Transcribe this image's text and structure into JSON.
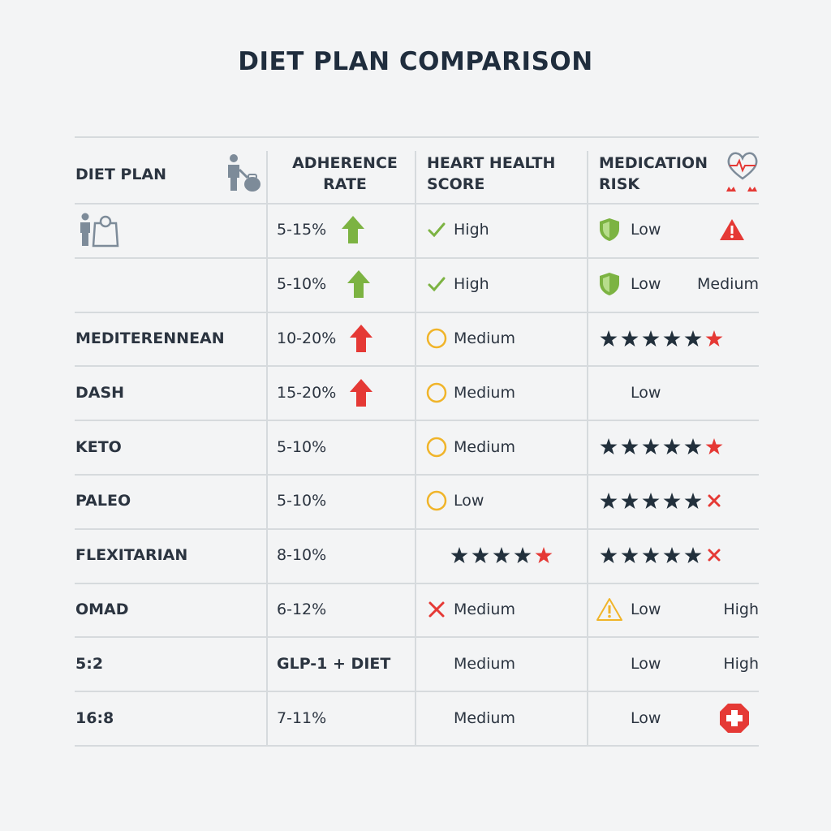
{
  "title": "DIET PLAN COMPARISON",
  "table": {
    "headers": [
      "DIET PLAN",
      "ADHERENCE RATE",
      "HEART HEALTH SCORE",
      "MEDICATION RISK"
    ],
    "rows": [
      {
        "adherence": "5-15%",
        "heart_health": "High",
        "medication_risk": "Low"
      },
      {
        "adherence": "5-10%",
        "heart_health": "High",
        "medication_risk": "Low",
        "medication_note": "Medium"
      },
      {
        "plan": "MEDITERENNEAN",
        "adherence": "10-20%",
        "heart_health": "Medium"
      },
      {
        "plan": "DASH",
        "adherence": "15-20%",
        "heart_health": "Medium",
        "medication_risk": "Low"
      },
      {
        "plan": "KETO",
        "adherence": "5-10%",
        "heart_health": "Medium"
      },
      {
        "plan": "PALEO",
        "adherence": "5-10%",
        "heart_health": "Low"
      },
      {
        "plan": "FLEXITARIAN",
        "adherence": "8-10%"
      },
      {
        "plan": "OMAD",
        "adherence": "6-12%",
        "heart_health": "Medium",
        "medication_risk": "Low",
        "medication_note": "High"
      },
      {
        "plan": "5:2",
        "adherence": "GLP-1 + DIET",
        "heart_health": "Medium",
        "medication_risk": "Low",
        "medication_note": "High"
      },
      {
        "plan": "16:8",
        "adherence": "7-11%",
        "heart_health": "Medium",
        "medication_risk": "Low"
      }
    ]
  }
}
